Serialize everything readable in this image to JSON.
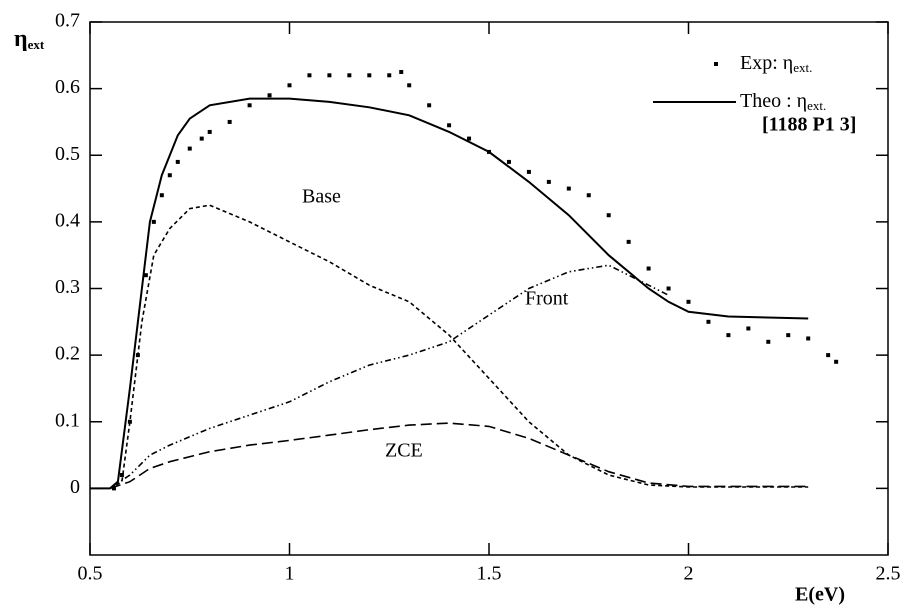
{
  "chart_data": {
    "type": "line",
    "xlabel": "E(eV)",
    "ylabel": "η",
    "ylabel_sub": "ext",
    "xlim": [
      0.5,
      2.5
    ],
    "xticks": [
      0.5,
      1,
      1.5,
      2,
      2.5
    ],
    "ylim": [
      -0.1,
      0.7
    ],
    "yticks": [
      0,
      0.1,
      0.2,
      0.3,
      0.4,
      0.5,
      0.6,
      0.7
    ],
    "legend": "upper right",
    "legend_note": "[1188 P1 3]",
    "series": [
      {
        "name": "Exp: η",
        "name_sub": "ext.",
        "kind": "scatter",
        "in_legend": true,
        "color": "#000000",
        "x": [
          0.56,
          0.58,
          0.6,
          0.62,
          0.64,
          0.66,
          0.68,
          0.7,
          0.72,
          0.75,
          0.78,
          0.8,
          0.85,
          0.9,
          0.95,
          1.0,
          1.05,
          1.1,
          1.15,
          1.2,
          1.25,
          1.28,
          1.3,
          1.35,
          1.4,
          1.45,
          1.5,
          1.55,
          1.6,
          1.65,
          1.7,
          1.75,
          1.8,
          1.85,
          1.9,
          1.95,
          2.0,
          2.05,
          2.1,
          2.15,
          2.2,
          2.25,
          2.3,
          2.35,
          2.37
        ],
        "values": [
          0,
          0.02,
          0.1,
          0.2,
          0.32,
          0.4,
          0.44,
          0.47,
          0.49,
          0.51,
          0.525,
          0.535,
          0.55,
          0.575,
          0.59,
          0.605,
          0.62,
          0.62,
          0.62,
          0.62,
          0.62,
          0.625,
          0.605,
          0.575,
          0.545,
          0.525,
          0.505,
          0.49,
          0.475,
          0.46,
          0.45,
          0.44,
          0.41,
          0.37,
          0.33,
          0.3,
          0.28,
          0.25,
          0.23,
          0.24,
          0.22,
          0.23,
          0.225,
          0.2,
          0.19
        ]
      },
      {
        "name": "Theo : η",
        "name_sub": "ext.",
        "kind": "line",
        "dash": "solid",
        "in_legend": true,
        "color": "#000000",
        "x": [
          0.5,
          0.55,
          0.57,
          0.6,
          0.63,
          0.65,
          0.68,
          0.72,
          0.75,
          0.8,
          0.9,
          1.0,
          1.1,
          1.2,
          1.3,
          1.4,
          1.5,
          1.6,
          1.7,
          1.8,
          1.9,
          1.95,
          2.0,
          2.1,
          2.3
        ],
        "values": [
          0,
          0,
          0.01,
          0.15,
          0.3,
          0.4,
          0.47,
          0.53,
          0.555,
          0.575,
          0.585,
          0.585,
          0.58,
          0.572,
          0.56,
          0.535,
          0.505,
          0.46,
          0.41,
          0.35,
          0.3,
          0.28,
          0.265,
          0.258,
          0.255
        ]
      },
      {
        "name": "Base",
        "kind": "line",
        "dash": "dashed",
        "in_legend": false,
        "color": "#000000",
        "x": [
          0.55,
          0.58,
          0.6,
          0.63,
          0.66,
          0.7,
          0.75,
          0.8,
          0.9,
          1.0,
          1.1,
          1.2,
          1.3,
          1.4,
          1.5,
          1.6,
          1.7,
          1.8,
          1.9,
          2.0,
          2.3
        ],
        "values": [
          0,
          0.01,
          0.1,
          0.25,
          0.35,
          0.39,
          0.42,
          0.425,
          0.4,
          0.37,
          0.34,
          0.305,
          0.28,
          0.23,
          0.165,
          0.1,
          0.05,
          0.02,
          0.005,
          0.002,
          0.002
        ]
      },
      {
        "name": "Front",
        "kind": "line",
        "dash": "dashdot",
        "in_legend": false,
        "color": "#000000",
        "x": [
          0.55,
          0.6,
          0.65,
          0.7,
          0.8,
          0.9,
          1.0,
          1.1,
          1.2,
          1.3,
          1.4,
          1.5,
          1.6,
          1.7,
          1.8,
          1.9,
          1.95
        ],
        "values": [
          0,
          0.02,
          0.05,
          0.065,
          0.09,
          0.11,
          0.13,
          0.16,
          0.185,
          0.2,
          0.22,
          0.26,
          0.3,
          0.325,
          0.335,
          0.305,
          0.29
        ]
      },
      {
        "name": "ZCE",
        "kind": "line",
        "dash": "longdash",
        "in_legend": false,
        "color": "#000000",
        "x": [
          0.55,
          0.6,
          0.65,
          0.7,
          0.8,
          0.9,
          1.0,
          1.1,
          1.2,
          1.3,
          1.4,
          1.5,
          1.6,
          1.7,
          1.8,
          1.9,
          2.0,
          2.3
        ],
        "values": [
          0,
          0.01,
          0.03,
          0.04,
          0.055,
          0.065,
          0.072,
          0.08,
          0.088,
          0.095,
          0.098,
          0.093,
          0.075,
          0.05,
          0.025,
          0.008,
          0.003,
          0.003
        ]
      }
    ]
  }
}
